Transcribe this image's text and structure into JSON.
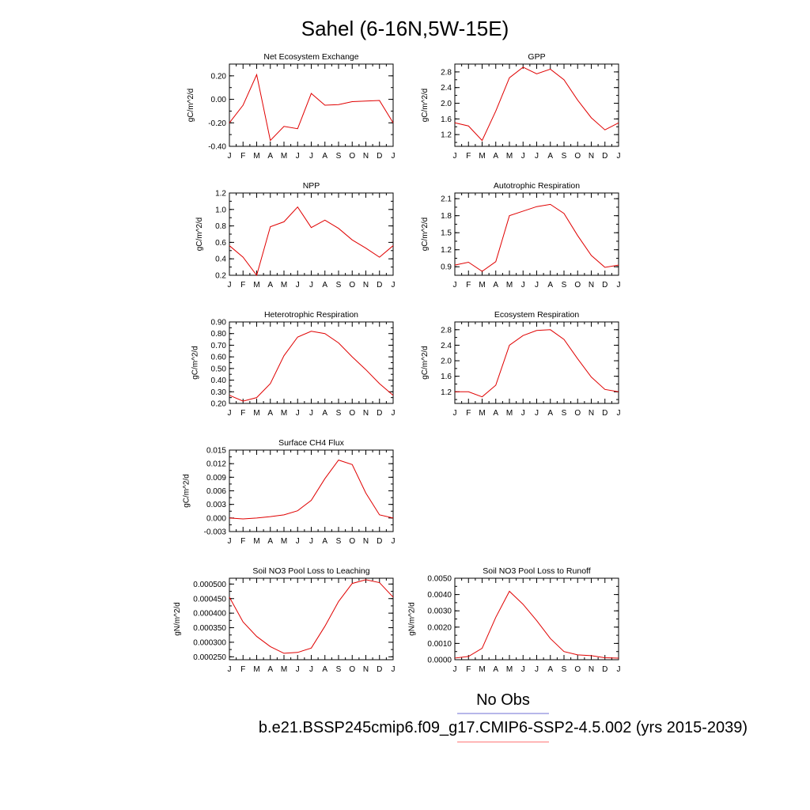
{
  "figure": {
    "title": "Sahel (6-16N,5W-15E)",
    "legend": [
      {
        "label": "No Obs",
        "color": "#6f6fd6"
      },
      {
        "label": "b.e21.BSSP245cmip6.f09_g17.CMIP6-SSP2-4.5.002 (yrs 2015-2039)",
        "color": "#ff6f6f"
      }
    ],
    "series_color": "#e00000"
  },
  "chart_data": [
    {
      "type": "line",
      "title": "Net Ecosystem Exchange",
      "ylabel": "gC/m^2/d",
      "categories": [
        "J",
        "F",
        "M",
        "A",
        "M",
        "J",
        "J",
        "A",
        "S",
        "O",
        "N",
        "D",
        "J"
      ],
      "ylim": [
        -0.4,
        0.3
      ],
      "yticks": [
        -0.4,
        -0.2,
        0.0,
        0.2
      ],
      "ytick_labels": [
        "-0.40",
        "-0.20",
        "0.00",
        "0.20"
      ],
      "values": [
        -0.2,
        -0.05,
        0.21,
        -0.35,
        -0.23,
        -0.25,
        0.05,
        -0.05,
        -0.045,
        -0.02,
        -0.015,
        -0.01,
        -0.2
      ]
    },
    {
      "type": "line",
      "title": "GPP",
      "ylabel": "gC/m^2/d",
      "categories": [
        "J",
        "F",
        "M",
        "A",
        "M",
        "J",
        "J",
        "A",
        "S",
        "O",
        "N",
        "D",
        "J"
      ],
      "ylim": [
        0.9,
        3.0
      ],
      "yticks": [
        1.2,
        1.6,
        2.0,
        2.4,
        2.8
      ],
      "ytick_labels": [
        "1.2",
        "1.6",
        "2.0",
        "2.4",
        "2.8"
      ],
      "values": [
        1.5,
        1.42,
        1.05,
        1.8,
        2.65,
        2.92,
        2.75,
        2.87,
        2.6,
        2.08,
        1.63,
        1.32,
        1.5
      ]
    },
    {
      "type": "line",
      "title": "NPP",
      "ylabel": "gC/m^2/d",
      "categories": [
        "J",
        "F",
        "M",
        "A",
        "M",
        "J",
        "J",
        "A",
        "S",
        "O",
        "N",
        "D",
        "J"
      ],
      "ylim": [
        0.2,
        1.2
      ],
      "yticks": [
        0.2,
        0.4,
        0.6,
        0.8,
        1.0,
        1.2
      ],
      "ytick_labels": [
        "0.2",
        "0.4",
        "0.6",
        "0.8",
        "1.0",
        "1.2"
      ],
      "values": [
        0.56,
        0.42,
        0.2,
        0.79,
        0.85,
        1.03,
        0.78,
        0.87,
        0.77,
        0.63,
        0.53,
        0.42,
        0.56
      ]
    },
    {
      "type": "line",
      "title": "Autotrophic Respiration",
      "ylabel": "gC/m^2/d",
      "categories": [
        "J",
        "F",
        "M",
        "A",
        "M",
        "J",
        "J",
        "A",
        "S",
        "O",
        "N",
        "D",
        "J"
      ],
      "ylim": [
        0.75,
        2.2
      ],
      "yticks": [
        0.9,
        1.2,
        1.5,
        1.8,
        2.1
      ],
      "ytick_labels": [
        "0.9",
        "1.2",
        "1.5",
        "1.8",
        "2.1"
      ],
      "values": [
        0.93,
        0.98,
        0.82,
        0.99,
        1.8,
        1.88,
        1.96,
        2.0,
        1.84,
        1.45,
        1.1,
        0.89,
        0.93
      ]
    },
    {
      "type": "line",
      "title": "Heterotrophic Respiration",
      "ylabel": "gC/m^2/d",
      "categories": [
        "J",
        "F",
        "M",
        "A",
        "M",
        "J",
        "J",
        "A",
        "S",
        "O",
        "N",
        "D",
        "J"
      ],
      "ylim": [
        0.2,
        0.9
      ],
      "yticks": [
        0.2,
        0.3,
        0.4,
        0.5,
        0.6,
        0.7,
        0.8,
        0.9
      ],
      "ytick_labels": [
        "0.20",
        "0.30",
        "0.40",
        "0.50",
        "0.60",
        "0.70",
        "0.80",
        "0.90"
      ],
      "values": [
        0.27,
        0.22,
        0.25,
        0.37,
        0.61,
        0.77,
        0.82,
        0.8,
        0.72,
        0.6,
        0.49,
        0.37,
        0.27
      ]
    },
    {
      "type": "line",
      "title": "Ecosystem Respiration",
      "ylabel": "gC/m^2/d",
      "categories": [
        "J",
        "F",
        "M",
        "A",
        "M",
        "J",
        "J",
        "A",
        "S",
        "O",
        "N",
        "D",
        "J"
      ],
      "ylim": [
        0.9,
        3.0
      ],
      "yticks": [
        1.2,
        1.6,
        2.0,
        2.4,
        2.8
      ],
      "ytick_labels": [
        "1.2",
        "1.6",
        "2.0",
        "2.4",
        "2.8"
      ],
      "values": [
        1.2,
        1.2,
        1.07,
        1.37,
        2.4,
        2.65,
        2.78,
        2.8,
        2.55,
        2.05,
        1.58,
        1.26,
        1.2
      ]
    },
    {
      "type": "line",
      "title": "Surface CH4 Flux",
      "ylabel": "gC/m^2/d",
      "categories": [
        "J",
        "F",
        "M",
        "A",
        "M",
        "J",
        "J",
        "A",
        "S",
        "O",
        "N",
        "D",
        "J"
      ],
      "ylim": [
        -0.003,
        0.015
      ],
      "yticks": [
        -0.003,
        0.0,
        0.003,
        0.006,
        0.009,
        0.012,
        0.015
      ],
      "ytick_labels": [
        "-0.003",
        "0.000",
        "0.003",
        "0.006",
        "0.009",
        "0.012",
        "0.015"
      ],
      "values": [
        0.0,
        -0.0002,
        0.0,
        0.0003,
        0.0007,
        0.0016,
        0.0039,
        0.0087,
        0.0128,
        0.0118,
        0.0055,
        0.0007,
        0.0
      ]
    },
    {
      "type": "line",
      "title": "Soil NO3 Pool Loss to Leaching",
      "ylabel": "gN/m^2/d",
      "categories": [
        "J",
        "F",
        "M",
        "A",
        "M",
        "J",
        "J",
        "A",
        "S",
        "O",
        "N",
        "D",
        "J"
      ],
      "ylim": [
        0.00024,
        0.00052
      ],
      "yticks": [
        0.00025,
        0.0003,
        0.00035,
        0.0004,
        0.00045,
        0.0005
      ],
      "ytick_labels": [
        "0.000250",
        "0.000300",
        "0.000350",
        "0.000400",
        "0.000450",
        "0.000500"
      ],
      "values": [
        0.000455,
        0.00037,
        0.00032,
        0.000285,
        0.000262,
        0.000265,
        0.00028,
        0.000355,
        0.00044,
        0.000502,
        0.000515,
        0.000505,
        0.000455
      ]
    },
    {
      "type": "line",
      "title": "Soil NO3 Pool Loss to Runoff",
      "ylabel": "gN/m^2/d",
      "categories": [
        "J",
        "F",
        "M",
        "A",
        "M",
        "J",
        "J",
        "A",
        "S",
        "O",
        "N",
        "D",
        "J"
      ],
      "ylim": [
        0.0,
        0.005
      ],
      "yticks": [
        0.0,
        0.001,
        0.002,
        0.003,
        0.004,
        0.005
      ],
      "ytick_labels": [
        "0.0000",
        "0.0010",
        "0.0020",
        "0.0030",
        "0.0040",
        "0.0050"
      ],
      "values": [
        0.0001,
        0.0002,
        0.0007,
        0.0026,
        0.0042,
        0.0034,
        0.0024,
        0.0013,
        0.0005,
        0.0003,
        0.00025,
        0.00012,
        0.0001
      ]
    }
  ]
}
